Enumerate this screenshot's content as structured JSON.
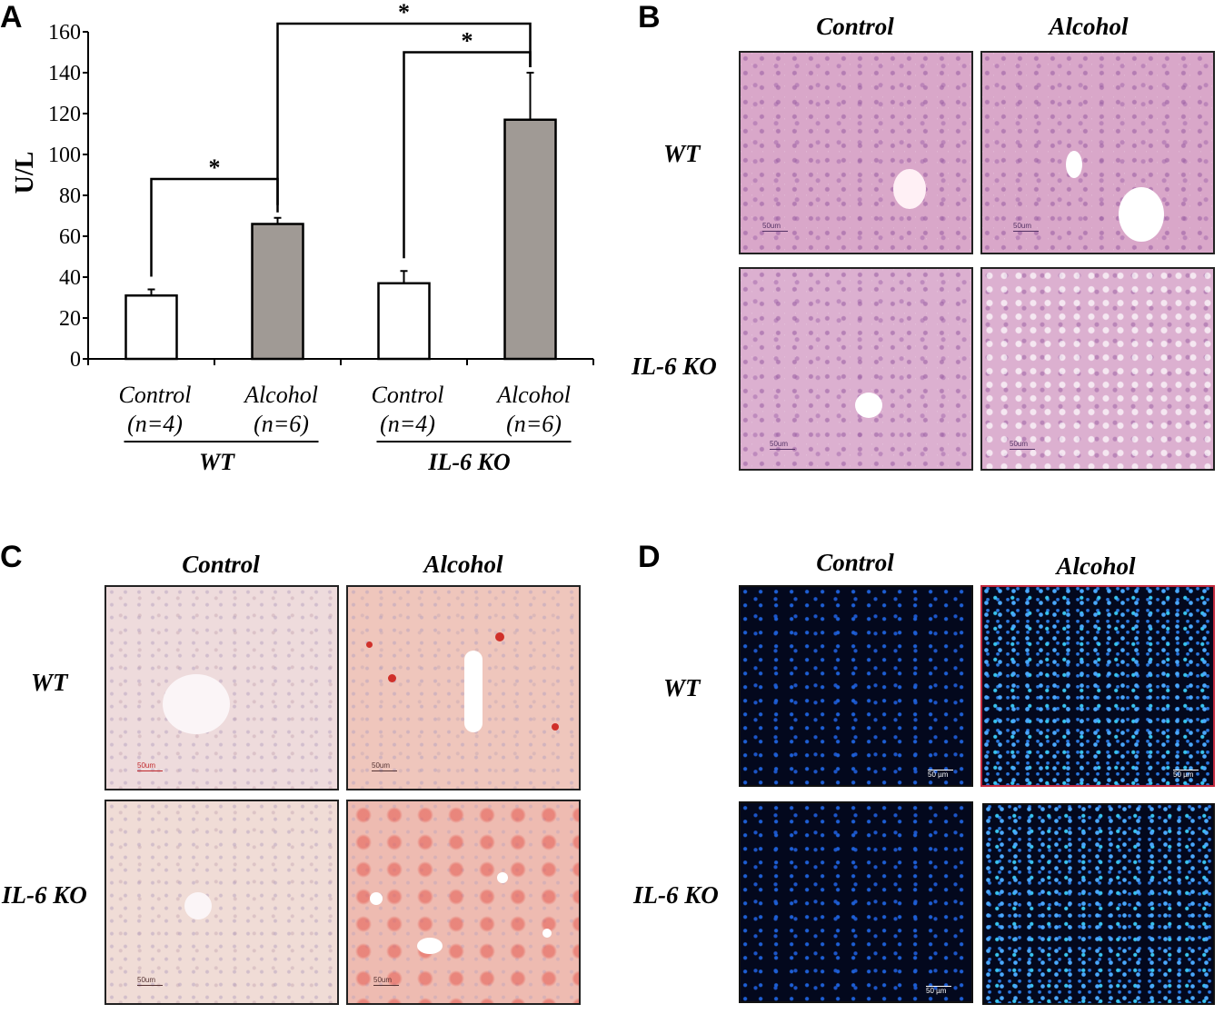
{
  "panel_letters": {
    "a": "A",
    "b": "B",
    "c": "C",
    "d": "D"
  },
  "columns": {
    "control": "Control",
    "alcohol": "Alcohol"
  },
  "rows": {
    "wt": "WT",
    "ko": "IL-6 KO"
  },
  "scale_label": "50um",
  "scale_label_d": "50 µm",
  "chart_data": {
    "type": "bar",
    "ylabel": "U/L",
    "ylim": [
      0,
      160
    ],
    "yticks": [
      0,
      20,
      40,
      60,
      80,
      100,
      120,
      140,
      160
    ],
    "categories": [
      "Control",
      "Alcohol",
      "Control",
      "Alcohol"
    ],
    "sample_sizes": [
      "(n=4)",
      "(n=6)",
      "(n=4)",
      "(n=6)"
    ],
    "values": [
      31,
      66,
      37,
      117
    ],
    "errors": [
      3,
      3,
      6,
      23
    ],
    "bar_colors": [
      "#ffffff",
      "#a09a95",
      "#ffffff",
      "#a09a95"
    ],
    "groups": [
      {
        "label": "WT",
        "indices": [
          0,
          1
        ]
      },
      {
        "label": "IL-6 KO",
        "indices": [
          2,
          3
        ]
      }
    ],
    "significance": [
      {
        "from": 0,
        "to": 1,
        "level": 88,
        "label": "*"
      },
      {
        "from": 2,
        "to": 3,
        "level": 150,
        "label": "*"
      },
      {
        "from": 1,
        "to": 3,
        "level": 164,
        "label": "*"
      }
    ]
  }
}
